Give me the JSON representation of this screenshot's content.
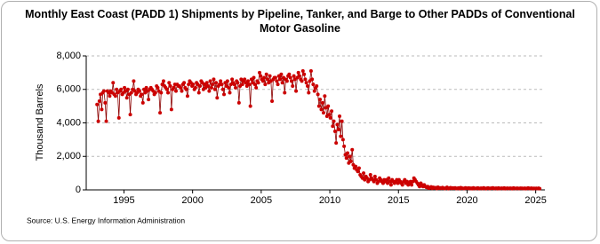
{
  "chart_data": {
    "type": "line",
    "title": "Monthly East Coast (PADD 1) Shipments by Pipeline, Tanker, and Barge to Other PADDs of Conventional Motor Gasoline",
    "y_label": "Thousand Barrels",
    "source": "Source: U.S. Energy Information Administration",
    "color": "#cc0000",
    "line_color": "#8b0000",
    "grid": true,
    "xlim": [
      1992.25,
      2025.67
    ],
    "xticks": [
      1995,
      2000,
      2005,
      2010,
      2015,
      2020,
      2025
    ],
    "ylim": [
      0,
      8000
    ],
    "yticks": [
      0,
      {
        "value": 2000,
        "label": "2,000"
      },
      {
        "value": 4000,
        "label": "4,000"
      },
      {
        "value": 6000,
        "label": "6,000"
      },
      {
        "value": 8000,
        "label": "8,000"
      }
    ],
    "x": [
      1993.04,
      1993.13,
      1993.21,
      1993.29,
      1993.38,
      1993.46,
      1993.54,
      1993.63,
      1993.71,
      1993.79,
      1993.88,
      1993.96,
      1994.04,
      1994.13,
      1994.21,
      1994.29,
      1994.38,
      1994.46,
      1994.54,
      1994.63,
      1994.71,
      1994.79,
      1994.88,
      1994.96,
      1995.04,
      1995.13,
      1995.21,
      1995.29,
      1995.38,
      1995.46,
      1995.54,
      1995.63,
      1995.71,
      1995.79,
      1995.88,
      1995.96,
      1996.04,
      1996.13,
      1996.21,
      1996.29,
      1996.38,
      1996.46,
      1996.54,
      1996.63,
      1996.71,
      1996.79,
      1996.88,
      1996.96,
      1997.04,
      1997.13,
      1997.21,
      1997.29,
      1997.38,
      1997.46,
      1997.54,
      1997.63,
      1997.71,
      1997.79,
      1997.88,
      1997.96,
      1998.04,
      1998.13,
      1998.21,
      1998.29,
      1998.38,
      1998.46,
      1998.54,
      1998.63,
      1998.71,
      1998.79,
      1998.88,
      1998.96,
      1999.04,
      1999.13,
      1999.21,
      1999.29,
      1999.38,
      1999.46,
      1999.54,
      1999.63,
      1999.71,
      1999.79,
      1999.88,
      1999.96,
      2000.04,
      2000.13,
      2000.21,
      2000.29,
      2000.38,
      2000.46,
      2000.54,
      2000.63,
      2000.71,
      2000.79,
      2000.88,
      2000.96,
      2001.04,
      2001.13,
      2001.21,
      2001.29,
      2001.38,
      2001.46,
      2001.54,
      2001.63,
      2001.71,
      2001.79,
      2001.88,
      2001.96,
      2002.04,
      2002.13,
      2002.21,
      2002.29,
      2002.38,
      2002.46,
      2002.54,
      2002.63,
      2002.71,
      2002.79,
      2002.88,
      2002.96,
      2003.04,
      2003.13,
      2003.21,
      2003.29,
      2003.38,
      2003.46,
      2003.54,
      2003.63,
      2003.71,
      2003.79,
      2003.88,
      2003.96,
      2004.04,
      2004.13,
      2004.21,
      2004.29,
      2004.38,
      2004.46,
      2004.54,
      2004.63,
      2004.71,
      2004.79,
      2004.88,
      2004.96,
      2005.04,
      2005.13,
      2005.21,
      2005.29,
      2005.38,
      2005.46,
      2005.54,
      2005.63,
      2005.71,
      2005.79,
      2005.88,
      2005.96,
      2006.04,
      2006.13,
      2006.21,
      2006.29,
      2006.38,
      2006.46,
      2006.54,
      2006.63,
      2006.71,
      2006.79,
      2006.88,
      2006.96,
      2007.04,
      2007.13,
      2007.21,
      2007.29,
      2007.38,
      2007.46,
      2007.54,
      2007.63,
      2007.71,
      2007.79,
      2007.88,
      2007.96,
      2008.04,
      2008.13,
      2008.21,
      2008.29,
      2008.38,
      2008.46,
      2008.54,
      2008.63,
      2008.71,
      2008.79,
      2008.88,
      2008.96,
      2009.04,
      2009.13,
      2009.21,
      2009.29,
      2009.38,
      2009.46,
      2009.54,
      2009.63,
      2009.71,
      2009.79,
      2009.88,
      2009.96,
      2010.04,
      2010.13,
      2010.21,
      2010.29,
      2010.38,
      2010.46,
      2010.54,
      2010.63,
      2010.71,
      2010.79,
      2010.88,
      2010.96,
      2011.04,
      2011.13,
      2011.21,
      2011.29,
      2011.38,
      2011.46,
      2011.54,
      2011.63,
      2011.71,
      2011.79,
      2011.88,
      2011.96,
      2012.04,
      2012.13,
      2012.21,
      2012.29,
      2012.38,
      2012.46,
      2012.54,
      2012.63,
      2012.71,
      2012.79,
      2012.88,
      2012.96,
      2013.04,
      2013.13,
      2013.21,
      2013.29,
      2013.38,
      2013.46,
      2013.54,
      2013.63,
      2013.71,
      2013.79,
      2013.88,
      2013.96,
      2014.04,
      2014.13,
      2014.21,
      2014.29,
      2014.38,
      2014.46,
      2014.54,
      2014.63,
      2014.71,
      2014.79,
      2014.88,
      2014.96,
      2015.04,
      2015.13,
      2015.21,
      2015.29,
      2015.38,
      2015.46,
      2015.54,
      2015.63,
      2015.71,
      2015.79,
      2015.88,
      2015.96,
      2016.04,
      2016.13,
      2016.21,
      2016.29,
      2016.38,
      2016.46,
      2016.54,
      2016.63,
      2016.71,
      2016.79,
      2016.88,
      2016.96,
      2017.04,
      2017.13,
      2017.21,
      2017.29,
      2017.38,
      2017.46,
      2017.54,
      2017.63,
      2017.71,
      2017.79,
      2017.88,
      2017.96,
      2018.04,
      2018.13,
      2018.21,
      2018.29,
      2018.38,
      2018.46,
      2018.54,
      2018.63,
      2018.71,
      2018.79,
      2018.88,
      2018.96,
      2019.04,
      2019.13,
      2019.21,
      2019.29,
      2019.38,
      2019.46,
      2019.54,
      2019.63,
      2019.71,
      2019.79,
      2019.88,
      2019.96,
      2020.04,
      2020.13,
      2020.21,
      2020.29,
      2020.38,
      2020.46,
      2020.54,
      2020.63,
      2020.71,
      2020.79,
      2020.88,
      2020.96,
      2021.04,
      2021.13,
      2021.21,
      2021.29,
      2021.38,
      2021.46,
      2021.54,
      2021.63,
      2021.71,
      2021.79,
      2021.88,
      2021.96,
      2022.04,
      2022.13,
      2022.21,
      2022.29,
      2022.38,
      2022.46,
      2022.54,
      2022.63,
      2022.71,
      2022.79,
      2022.88,
      2022.96,
      2023.04,
      2023.13,
      2023.21,
      2023.29,
      2023.38,
      2023.46,
      2023.54,
      2023.63,
      2023.71,
      2023.79,
      2023.88,
      2023.96,
      2024.04,
      2024.13,
      2024.21,
      2024.29,
      2024.38,
      2024.46,
      2024.54,
      2024.63,
      2024.71,
      2024.79,
      2024.88,
      2024.96,
      2025.04,
      2025.13,
      2025.21,
      2025.29
    ],
    "values": [
      5100,
      4100,
      5300,
      5700,
      4800,
      5800,
      5900,
      5200,
      4100,
      5900,
      5800,
      5600,
      5900,
      5800,
      6400,
      5700,
      5600,
      6000,
      5800,
      4300,
      5900,
      6000,
      5700,
      5800,
      6100,
      5900,
      5500,
      6000,
      5700,
      4500,
      5800,
      6000,
      6500,
      5900,
      5700,
      5800,
      6000,
      5900,
      5600,
      5700,
      5200,
      6000,
      5800,
      6100,
      5900,
      5400,
      6000,
      6100,
      6000,
      5900,
      5700,
      5800,
      6200,
      6100,
      5900,
      4600,
      5800,
      6300,
      6500,
      6200,
      6100,
      6000,
      5800,
      6400,
      6200,
      4800,
      6000,
      6100,
      6300,
      5900,
      6300,
      6200,
      6200,
      6100,
      5900,
      6300,
      6400,
      6100,
      6000,
      5600,
      6300,
      6500,
      6400,
      6200,
      6300,
      6000,
      6100,
      6400,
      6300,
      5800,
      6200,
      6500,
      6400,
      6000,
      6300,
      6100,
      6400,
      6200,
      5900,
      6500,
      6100,
      6300,
      6600,
      6000,
      6400,
      5500,
      6200,
      6300,
      6500,
      6300,
      6000,
      5700,
      6400,
      6200,
      6500,
      6100,
      5800,
      6300,
      6600,
      6400,
      6300,
      6100,
      6500,
      6400,
      5200,
      6200,
      6600,
      6300,
      6500,
      6600,
      6400,
      6200,
      6500,
      6300,
      5000,
      6600,
      6400,
      6700,
      6300,
      6100,
      6500,
      6400,
      7000,
      6800,
      6600,
      6500,
      6700,
      6300,
      6900,
      6600,
      6400,
      6800,
      6500,
      5300,
      6600,
      6700,
      6700,
      6500,
      6300,
      6800,
      6600,
      6900,
      6400,
      6700,
      5800,
      6600,
      6500,
      6800,
      6900,
      6700,
      6500,
      6200,
      6800,
      6600,
      5900,
      6700,
      7000,
      6800,
      6600,
      6500,
      7100,
      6900,
      6600,
      6400,
      6200,
      5800,
      6500,
      7100,
      6600,
      6300,
      5900,
      6100,
      6200,
      5700,
      5000,
      5400,
      4800,
      5200,
      4600,
      5600,
      4900,
      4400,
      5000,
      4500,
      4300,
      4700,
      3800,
      4100,
      3500,
      2800,
      3900,
      3600,
      4400,
      3200,
      4100,
      3000,
      2600,
      2100,
      1900,
      2200,
      1600,
      2000,
      1700,
      2400,
      1500,
      1300,
      1400,
      1200,
      1100,
      1300,
      900,
      800,
      700,
      1000,
      600,
      800,
      700,
      500,
      600,
      900,
      700,
      600,
      500,
      800,
      600,
      400,
      500,
      700,
      600,
      500,
      400,
      600,
      500,
      600,
      400,
      700,
      500,
      300,
      600,
      500,
      400,
      500,
      600,
      400,
      600,
      500,
      400,
      300,
      500,
      600,
      400,
      500,
      300,
      400,
      500,
      300,
      500,
      700,
      600,
      500,
      400,
      300,
      200,
      400,
      300,
      200,
      300,
      200,
      150,
      200,
      100,
      120,
      180,
      90,
      150,
      110,
      130,
      80,
      160,
      100,
      120,
      90,
      140,
      100,
      80,
      110,
      150,
      70,
      100,
      130,
      90,
      110,
      100,
      120,
      80,
      90,
      110,
      70,
      130,
      100,
      90,
      80,
      120,
      100,
      90,
      110,
      80,
      100,
      70,
      120,
      90,
      80,
      100,
      110,
      70,
      90,
      100,
      80,
      120,
      90,
      70,
      100,
      110,
      80,
      90,
      100,
      120,
      80,
      90,
      100,
      70,
      110,
      80,
      90,
      100,
      80,
      110,
      70,
      90,
      100,
      80,
      100,
      90,
      70,
      110,
      90,
      80,
      100,
      90,
      80,
      100,
      90,
      90,
      80,
      100,
      70,
      90,
      110,
      80,
      90,
      100,
      70,
      90,
      80,
      90,
      80,
      100,
      70
    ]
  }
}
